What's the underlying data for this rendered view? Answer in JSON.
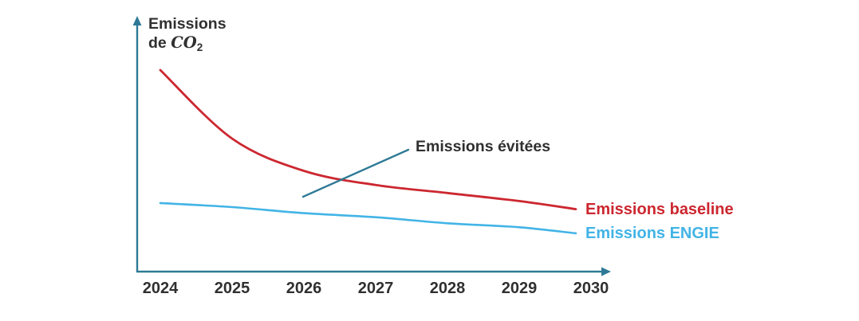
{
  "colors": {
    "axis_teal": "#2e7a96",
    "baseline_red": "#cc2730",
    "engie_blue": "#42b4e6",
    "text_ink": "#303030",
    "background": "#ffffff"
  },
  "y_axis_title": {
    "line1": "Emissions",
    "line2_prefix": "de ",
    "line2_formula": "CO",
    "line2_subscript": "2"
  },
  "chart_data": {
    "type": "line",
    "title": "",
    "xlabel": "",
    "ylabel": "Emissions de CO2",
    "categories": [
      "2024",
      "2025",
      "2026",
      "2027",
      "2028",
      "2029",
      "2030"
    ],
    "series": [
      {
        "name": "Emissions baseline",
        "color": "#cc2730",
        "shape": "smooth-decay",
        "values": [
          100,
          66,
          50,
          43,
          39,
          35,
          31
        ]
      },
      {
        "name": "Emissions ENGIE",
        "color": "#42b4e6",
        "shape": "near-linear",
        "values": [
          34,
          32,
          29,
          27,
          24,
          22,
          19
        ]
      }
    ],
    "units": "relative (no numeric y scale shown)",
    "y_axis_numeric_labels": false,
    "grid": false,
    "legend_position": "labels at right end of each line",
    "annotations": [
      {
        "text": "Emissions évitées",
        "refers_to": "gap between baseline and ENGIE lines"
      }
    ],
    "x_range": [
      "2024",
      "2030"
    ]
  }
}
